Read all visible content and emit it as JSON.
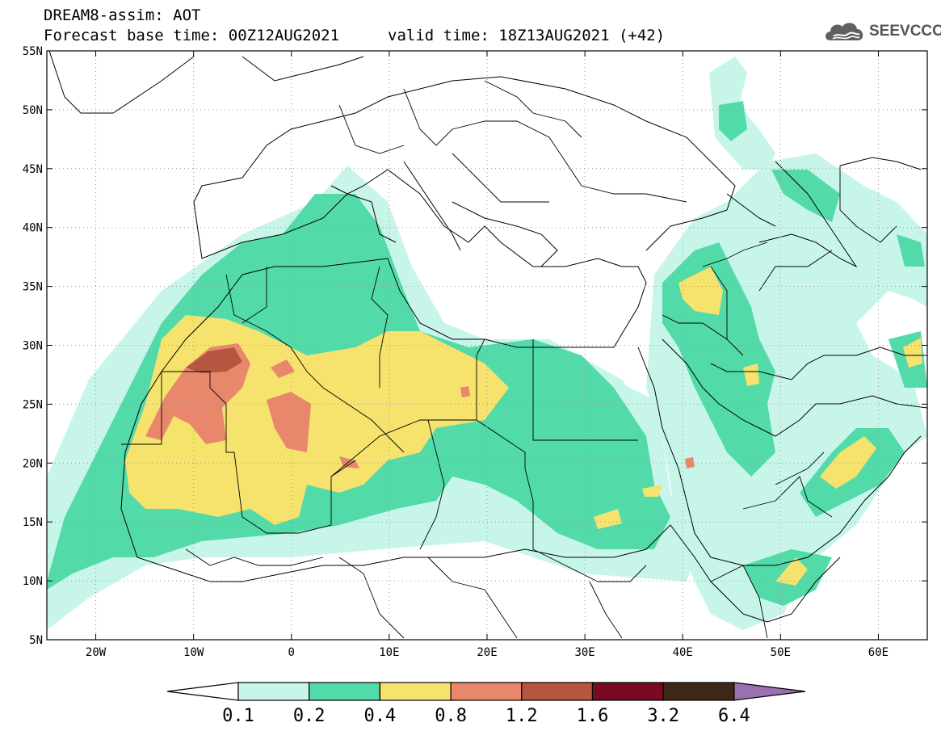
{
  "title": {
    "line1": "DREAM8-assim: AOT",
    "line2": "Forecast base time: 00Z12AUG2021",
    "valid": "valid time: 18Z13AUG2021 (+42)"
  },
  "logo": {
    "text": "SEEVCCC",
    "icon": "cloud-icon"
  },
  "map": {
    "lon_range": [
      -25,
      65
    ],
    "lat_range": [
      5,
      55
    ],
    "lat_ticks": [
      "55N",
      "50N",
      "45N",
      "40N",
      "35N",
      "30N",
      "25N",
      "20N",
      "15N",
      "10N",
      "5N"
    ],
    "lat_values": [
      55,
      50,
      45,
      40,
      35,
      30,
      25,
      20,
      15,
      10,
      5
    ],
    "lon_ticks": [
      "20W",
      "10W",
      "0",
      "10E",
      "20E",
      "30E",
      "40E",
      "50E",
      "60E"
    ],
    "lon_values": [
      -20,
      -10,
      0,
      10,
      20,
      30,
      40,
      50,
      60
    ]
  },
  "colorbar": {
    "labels": [
      "0.1",
      "0.2",
      "0.4",
      "0.8",
      "1.2",
      "1.6",
      "3.2",
      "6.4"
    ],
    "colors": [
      "#c8f5ea",
      "#52dba9",
      "#f5e36e",
      "#e8876b",
      "#b55740",
      "#7a0a22",
      "#3d2817",
      "#9970b0"
    ]
  }
}
